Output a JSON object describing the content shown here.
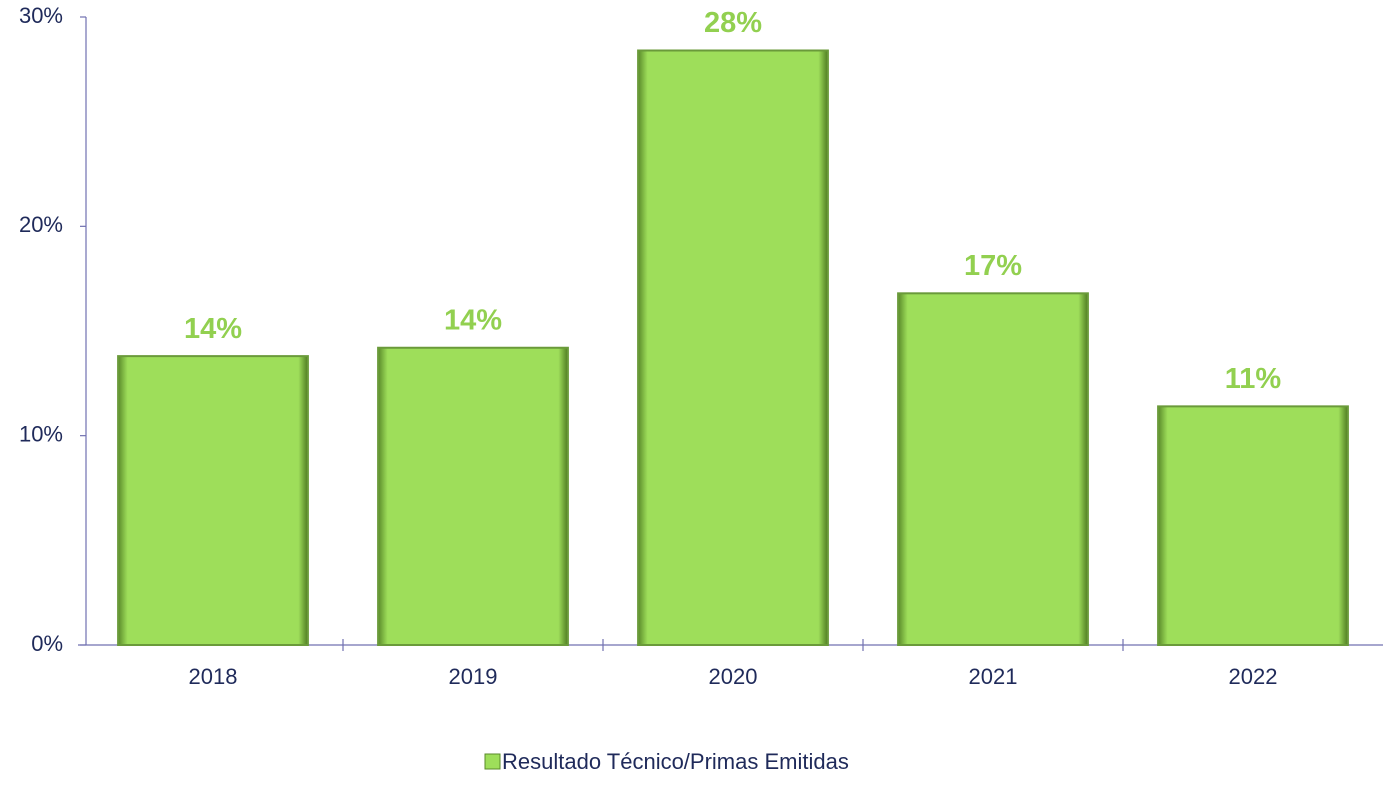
{
  "chart_data": {
    "type": "bar",
    "categories": [
      "2018",
      "2019",
      "2020",
      "2021",
      "2022"
    ],
    "series": [
      {
        "name": "Resultado Técnico/Primas Emitidas",
        "color": "#9ede5a",
        "values": [
          13.8,
          14.2,
          28.4,
          16.8,
          11.4
        ],
        "value_labels": [
          "14%",
          "14%",
          "28%",
          "17%",
          "11%"
        ]
      }
    ],
    "ylim": [
      0,
      30
    ],
    "yticks": [
      {
        "value": 0,
        "label": "0%"
      },
      {
        "value": 10,
        "label": "10%"
      },
      {
        "value": 20,
        "label": "20%"
      },
      {
        "value": 30,
        "label": "30%"
      }
    ],
    "grid": false,
    "legend": "bottom"
  }
}
